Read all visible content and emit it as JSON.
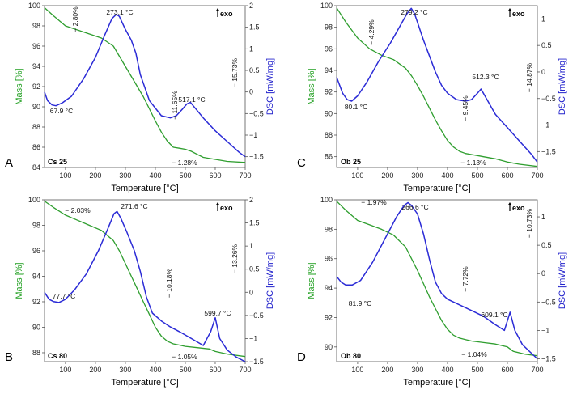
{
  "colors": {
    "mass": "#2f9e2f",
    "dsc": "#2b2bd6",
    "mass_label": "#22a022",
    "dsc_label": "#2323cc",
    "guide": "#888888"
  },
  "chart_data": [
    {
      "type": "line",
      "panel": "A",
      "sample": "Cs 25",
      "xlabel": "Temperature [°C]",
      "ylabel_left": "Mass [%]",
      "ylabel_right": "DSC [mW/mg]",
      "exo_label": "exo",
      "xlim": [
        30,
        700
      ],
      "ylim_left": [
        84,
        100
      ],
      "ylim_right": [
        -1.75,
        2
      ],
      "x_ticks": [
        100,
        200,
        300,
        400,
        500,
        600,
        700
      ],
      "y_ticks_left": [
        84,
        86,
        88,
        90,
        92,
        94,
        96,
        98,
        100
      ],
      "y_ticks_right": [
        -1.5,
        -1,
        -0.5,
        0,
        0.5,
        1,
        1.5,
        2
      ],
      "y_ticks_right_labels": [
        "−1.5",
        "−1",
        "−0.5",
        "0",
        "0.5",
        "1",
        "1.5",
        "2"
      ],
      "series": [
        {
          "name": "Mass",
          "axis": "left",
          "x": [
            30,
            60,
            100,
            140,
            180,
            220,
            260,
            280,
            300,
            320,
            340,
            360,
            380,
            400,
            420,
            440,
            460,
            480,
            500,
            520,
            540,
            560,
            600,
            640,
            700
          ],
          "y": [
            99.8,
            99.0,
            98.0,
            97.6,
            97.2,
            96.8,
            96.0,
            95.0,
            94.0,
            93.0,
            92.0,
            91.0,
            89.8,
            88.6,
            87.5,
            86.6,
            86.0,
            85.9,
            85.8,
            85.6,
            85.3,
            85.0,
            84.8,
            84.6,
            84.5
          ]
        },
        {
          "name": "DSC",
          "axis": "right",
          "x": [
            30,
            40,
            55,
            68,
            90,
            120,
            160,
            200,
            230,
            255,
            270,
            280,
            300,
            320,
            335,
            350,
            380,
            420,
            450,
            470,
            490,
            505,
            517,
            530,
            560,
            600,
            640,
            680,
            700
          ],
          "y": [
            0,
            -0.2,
            -0.3,
            -0.32,
            -0.25,
            -0.1,
            0.3,
            0.8,
            1.3,
            1.7,
            1.8,
            1.75,
            1.45,
            1.2,
            0.9,
            0.4,
            -0.2,
            -0.55,
            -0.6,
            -0.55,
            -0.4,
            -0.28,
            -0.24,
            -0.35,
            -0.6,
            -0.9,
            -1.15,
            -1.4,
            -1.5
          ]
        }
      ],
      "annotations": {
        "mass_steps": [
          "− 2.80%",
          "− 11.65%",
          "− 1.28%"
        ],
        "total": "− 15.73%",
        "peaks": [
          "67.9 °C",
          "273.1 °C",
          "517.1 °C"
        ]
      }
    },
    {
      "type": "line",
      "panel": "C",
      "sample": "Ob 25",
      "xlabel": "Temperature [°C]",
      "ylabel_left": "Mass [%]",
      "ylabel_right": "DSC [mW/mg]",
      "exo_label": "exo",
      "xlim": [
        30,
        700
      ],
      "ylim_left": [
        85,
        100
      ],
      "ylim_right": [
        -1.8,
        1.25
      ],
      "x_ticks": [
        100,
        200,
        300,
        400,
        500,
        600,
        700
      ],
      "y_ticks_left": [
        86,
        88,
        90,
        92,
        94,
        96,
        98,
        100
      ],
      "y_ticks_right": [
        -1.5,
        -1,
        -0.5,
        0,
        0.5,
        1
      ],
      "y_ticks_right_labels": [
        "−1.5",
        "−1",
        "−0.5",
        "0",
        "0.5",
        "1"
      ],
      "series": [
        {
          "name": "Mass",
          "axis": "left",
          "x": [
            30,
            60,
            100,
            140,
            180,
            220,
            260,
            280,
            300,
            320,
            340,
            360,
            380,
            400,
            420,
            440,
            460,
            480,
            500,
            520,
            560,
            600,
            640,
            700
          ],
          "y": [
            99.8,
            98.5,
            97.0,
            96.0,
            95.4,
            95.0,
            94.2,
            93.5,
            92.6,
            91.6,
            90.5,
            89.4,
            88.4,
            87.5,
            86.9,
            86.5,
            86.3,
            86.2,
            86.1,
            86.0,
            85.8,
            85.5,
            85.3,
            85.1
          ]
        },
        {
          "name": "DSC",
          "axis": "right",
          "x": [
            30,
            50,
            65,
            80,
            100,
            130,
            170,
            210,
            240,
            265,
            279,
            290,
            305,
            320,
            340,
            360,
            380,
            400,
            430,
            460,
            480,
            500,
            512,
            525,
            560,
            600,
            640,
            680,
            700
          ],
          "y": [
            -0.1,
            -0.4,
            -0.52,
            -0.55,
            -0.45,
            -0.2,
            0.2,
            0.55,
            0.85,
            1.1,
            1.2,
            1.1,
            0.85,
            0.6,
            0.3,
            0.0,
            -0.25,
            -0.4,
            -0.52,
            -0.55,
            -0.52,
            -0.4,
            -0.32,
            -0.45,
            -0.8,
            -1.05,
            -1.3,
            -1.55,
            -1.7
          ]
        }
      ],
      "annotations": {
        "mass_steps": [
          "− 4.29%",
          "− 9.45%",
          "− 1.13%"
        ],
        "total": "− 14.87%",
        "peaks": [
          "80.1 °C",
          "279.2 °C",
          "512.3 °C"
        ]
      }
    },
    {
      "type": "line",
      "panel": "B",
      "sample": "Cs 80",
      "xlabel": "Temperature [°C]",
      "ylabel_left": "Mass [%]",
      "ylabel_right": "DSC [mW/mg]",
      "exo_label": "exo",
      "xlim": [
        30,
        700
      ],
      "ylim_left": [
        87.3,
        100
      ],
      "ylim_right": [
        -1.5,
        2
      ],
      "x_ticks": [
        100,
        200,
        300,
        400,
        500,
        600,
        700
      ],
      "y_ticks_left": [
        88,
        90,
        92,
        94,
        96,
        98,
        100
      ],
      "y_ticks_right": [
        -1.5,
        -1,
        -0.5,
        0,
        0.5,
        1,
        1.5,
        2
      ],
      "y_ticks_right_labels": [
        "−1.5",
        "−1",
        "−0.5",
        "0",
        "0.5",
        "1",
        "1.5",
        "2"
      ],
      "series": [
        {
          "name": "Mass",
          "axis": "left",
          "x": [
            30,
            60,
            100,
            140,
            180,
            220,
            260,
            280,
            300,
            320,
            340,
            360,
            380,
            400,
            420,
            440,
            460,
            480,
            500,
            540,
            580,
            600,
            640,
            700
          ],
          "y": [
            99.9,
            99.4,
            98.8,
            98.4,
            98.0,
            97.6,
            96.8,
            96.0,
            95.0,
            94.0,
            93.0,
            92.0,
            91.0,
            90.0,
            89.3,
            88.9,
            88.7,
            88.6,
            88.5,
            88.4,
            88.3,
            88.1,
            87.9,
            87.7
          ]
        },
        {
          "name": "DSC",
          "axis": "right",
          "x": [
            30,
            45,
            60,
            78,
            100,
            130,
            170,
            210,
            240,
            262,
            272,
            285,
            305,
            330,
            350,
            370,
            390,
            420,
            450,
            480,
            520,
            560,
            585,
            600,
            615,
            640,
            670,
            700
          ],
          "y": [
            0,
            -0.15,
            -0.2,
            -0.22,
            -0.15,
            0.05,
            0.4,
            0.9,
            1.35,
            1.7,
            1.75,
            1.6,
            1.3,
            0.9,
            0.45,
            -0.1,
            -0.45,
            -0.62,
            -0.75,
            -0.85,
            -1.0,
            -1.15,
            -0.85,
            -0.55,
            -1.0,
            -1.25,
            -1.4,
            -1.5
          ]
        }
      ],
      "annotations": {
        "mass_steps": [
          "− 2.03%",
          "− 10.18%",
          "− 1.05%"
        ],
        "total": "− 13.26%",
        "peaks": [
          "77.7 °C",
          "271.6 °C",
          "599.7 °C"
        ]
      }
    },
    {
      "type": "line",
      "panel": "D",
      "sample": "Ob 80",
      "xlabel": "Temperature [°C]",
      "ylabel_left": "Mass [%]",
      "ylabel_right": "DSC [mW/mg]",
      "exo_label": "exo",
      "xlim": [
        30,
        700
      ],
      "ylim_left": [
        89,
        100
      ],
      "ylim_right": [
        -1.55,
        1.3
      ],
      "x_ticks": [
        100,
        200,
        300,
        400,
        500,
        600,
        700
      ],
      "y_ticks_left": [
        90,
        92,
        94,
        96,
        98,
        100
      ],
      "y_ticks_right": [
        -1.5,
        -1,
        -0.5,
        0,
        0.5,
        1
      ],
      "y_ticks_right_labels": [
        "−1.5",
        "−1",
        "−0.5",
        "0",
        "0.5",
        "1"
      ],
      "series": [
        {
          "name": "Mass",
          "axis": "left",
          "x": [
            30,
            60,
            100,
            140,
            180,
            220,
            260,
            280,
            300,
            320,
            340,
            360,
            380,
            400,
            420,
            440,
            460,
            480,
            520,
            560,
            600,
            620,
            660,
            700
          ],
          "y": [
            99.9,
            99.3,
            98.6,
            98.3,
            98.0,
            97.6,
            96.8,
            96.0,
            95.2,
            94.3,
            93.4,
            92.6,
            91.8,
            91.2,
            90.8,
            90.6,
            90.5,
            90.4,
            90.3,
            90.2,
            90.0,
            89.7,
            89.5,
            89.4
          ]
        },
        {
          "name": "DSC",
          "axis": "right",
          "x": [
            30,
            45,
            60,
            82,
            110,
            150,
            190,
            230,
            255,
            268,
            280,
            300,
            320,
            340,
            360,
            380,
            400,
            440,
            480,
            520,
            560,
            590,
            609,
            625,
            650,
            680,
            700
          ],
          "y": [
            -0.05,
            -0.15,
            -0.2,
            -0.2,
            -0.12,
            0.2,
            0.6,
            1.0,
            1.2,
            1.25,
            1.2,
            1.05,
            0.7,
            0.25,
            -0.15,
            -0.35,
            -0.45,
            -0.55,
            -0.65,
            -0.75,
            -0.9,
            -1.0,
            -0.68,
            -1.0,
            -1.25,
            -1.4,
            -1.5
          ]
        }
      ],
      "annotations": {
        "mass_steps": [
          "− 1.97%",
          "− 7.72%",
          "− 1.04%"
        ],
        "total": "− 10.73%",
        "peaks": [
          "81.9 °C",
          "266.6 °C",
          "609.1 °C"
        ]
      }
    }
  ]
}
